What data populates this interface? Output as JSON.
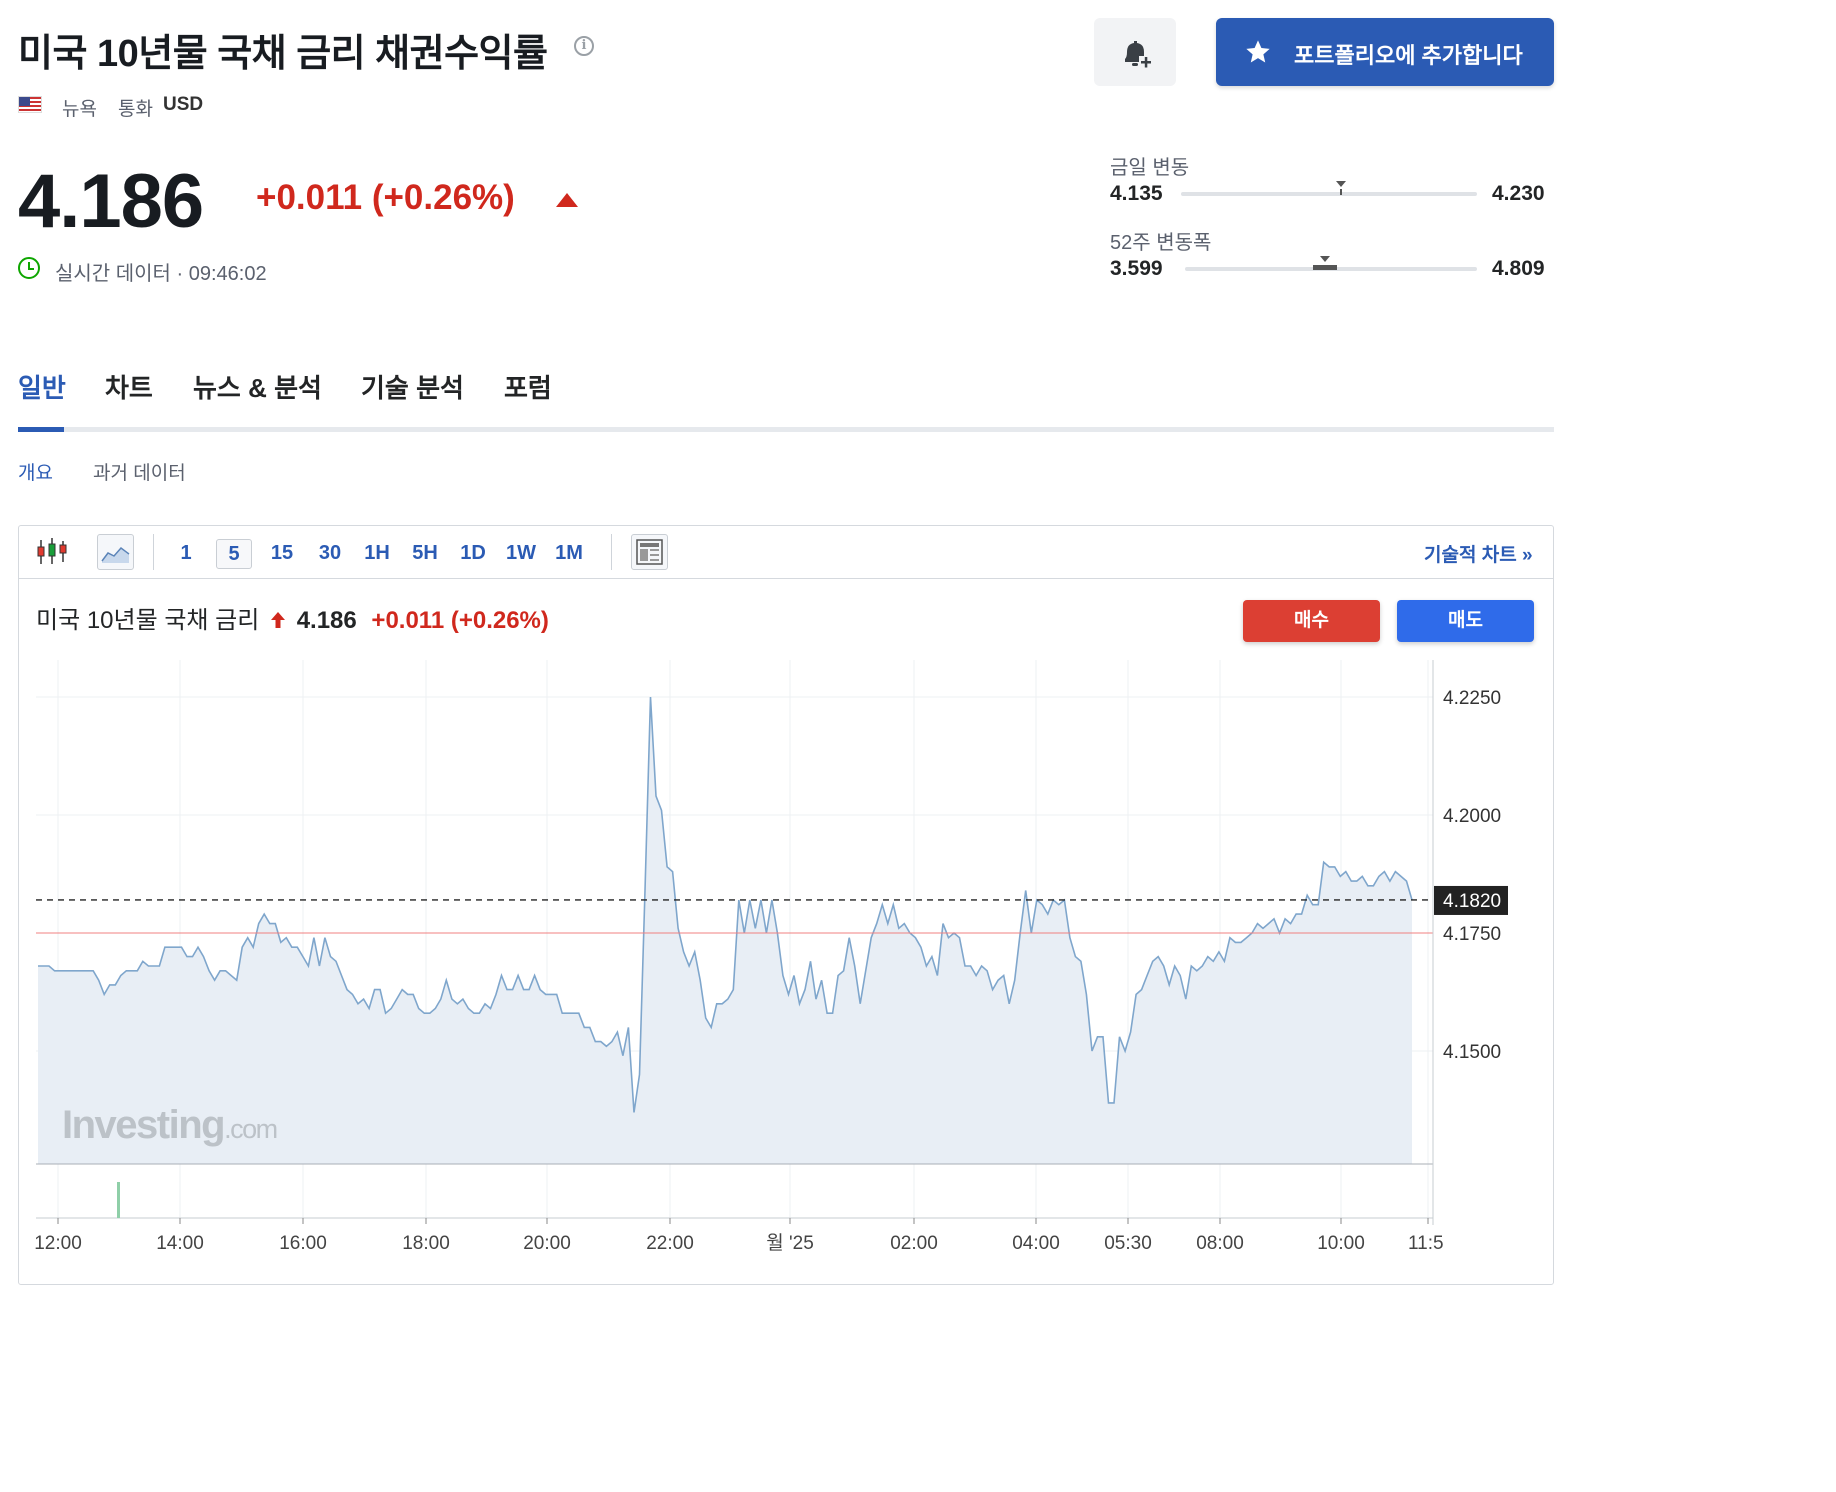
{
  "header": {
    "title": "미국 10년물 국채 금리 채권수익률",
    "location": "뉴욕",
    "currency_label": "통화",
    "currency": "USD",
    "portfolio_button": "포트폴리오에 추가합니다"
  },
  "quote": {
    "price": "4.186",
    "change": "+0.011 (+0.26%)",
    "realtime_label": "실시간 데이터 · 09:46:02",
    "day_range": {
      "label": "금일 변동",
      "low": "4.135",
      "high": "4.230",
      "position": 0.54
    },
    "week52_range": {
      "label": "52주 변동폭",
      "low": "3.599",
      "high": "4.809",
      "position": 0.48
    }
  },
  "tabs": [
    {
      "label": "일반",
      "active": true
    },
    {
      "label": "차트",
      "active": false
    },
    {
      "label": "뉴스 & 분석",
      "active": false
    },
    {
      "label": "기술 분석",
      "active": false
    },
    {
      "label": "포럼",
      "active": false
    }
  ],
  "subtabs": [
    {
      "label": "개요",
      "active": true
    },
    {
      "label": "과거 데이터",
      "active": false
    }
  ],
  "toolbar": {
    "timeframes": [
      "1",
      "5",
      "15",
      "30",
      "1H",
      "5H",
      "1D",
      "1W",
      "1M"
    ],
    "selected": "5",
    "tech_chart_link": "기술적 차트 »"
  },
  "chart_header": {
    "name": "미국 10년물 국채 금리",
    "price": "4.186",
    "change": "+0.011 (+0.26%)",
    "buy": "매수",
    "sell": "매도"
  },
  "watermark": {
    "brand": "Investing",
    "suffix": ".com"
  },
  "colors": {
    "line": "#7fa6cc",
    "area": "#e8eef5",
    "up": "#d0281d",
    "accent": "#2b5bb4",
    "buy": "#dc3f33",
    "sell": "#2f6bea"
  },
  "chart_data": {
    "type": "area",
    "y_ticks": [
      "4.2250",
      "4.2000",
      "4.1750",
      "4.1500"
    ],
    "ylim": [
      4.127,
      4.235
    ],
    "x_ticks": [
      "12:00",
      "14:00",
      "16:00",
      "18:00",
      "20:00",
      "22:00",
      "월 '25",
      "02:00",
      "04:00",
      "05:30",
      "08:00",
      "10:00",
      "11:5"
    ],
    "current_value": 4.182,
    "current_label": "4.1820",
    "previous_close": 4.175,
    "values": [
      4.168,
      4.168,
      4.168,
      4.167,
      4.167,
      4.167,
      4.167,
      4.167,
      4.167,
      4.167,
      4.167,
      4.165,
      4.162,
      4.164,
      4.164,
      4.166,
      4.167,
      4.167,
      4.167,
      4.169,
      4.168,
      4.168,
      4.168,
      4.172,
      4.172,
      4.172,
      4.172,
      4.17,
      4.17,
      4.172,
      4.17,
      4.167,
      4.165,
      4.167,
      4.167,
      4.166,
      4.165,
      4.172,
      4.174,
      4.172,
      4.177,
      4.179,
      4.177,
      4.177,
      4.173,
      4.174,
      4.172,
      4.172,
      4.17,
      4.168,
      4.174,
      4.168,
      4.174,
      4.17,
      4.169,
      4.166,
      4.163,
      4.162,
      4.16,
      4.161,
      4.159,
      4.163,
      4.163,
      4.158,
      4.159,
      4.161,
      4.163,
      4.162,
      4.162,
      4.159,
      4.158,
      4.158,
      4.159,
      4.161,
      4.165,
      4.161,
      4.16,
      4.161,
      4.159,
      4.158,
      4.158,
      4.16,
      4.159,
      4.162,
      4.166,
      4.163,
      4.163,
      4.166,
      4.163,
      4.163,
      4.166,
      4.163,
      4.162,
      4.162,
      4.162,
      4.158,
      4.158,
      4.158,
      4.158,
      4.155,
      4.155,
      4.152,
      4.152,
      4.151,
      4.152,
      4.154,
      4.149,
      4.155,
      4.137,
      4.145,
      4.184,
      4.225,
      4.204,
      4.201,
      4.189,
      4.188,
      4.176,
      4.171,
      4.168,
      4.171,
      4.165,
      4.157,
      4.155,
      4.16,
      4.16,
      4.161,
      4.163,
      4.182,
      4.175,
      4.182,
      4.176,
      4.182,
      4.175,
      4.182,
      4.175,
      4.166,
      4.162,
      4.166,
      4.16,
      4.163,
      4.169,
      4.161,
      4.165,
      4.158,
      4.158,
      4.166,
      4.167,
      4.174,
      4.168,
      4.16,
      4.167,
      4.174,
      4.177,
      4.181,
      4.177,
      4.181,
      4.176,
      4.177,
      4.175,
      4.174,
      4.172,
      4.168,
      4.17,
      4.166,
      4.177,
      4.174,
      4.175,
      4.174,
      4.168,
      4.168,
      4.166,
      4.168,
      4.167,
      4.163,
      4.165,
      4.166,
      4.16,
      4.165,
      4.175,
      4.184,
      4.175,
      4.182,
      4.181,
      4.179,
      4.182,
      4.181,
      4.182,
      4.174,
      4.17,
      4.169,
      4.162,
      4.15,
      4.153,
      4.153,
      4.139,
      4.139,
      4.153,
      4.15,
      4.154,
      4.162,
      4.163,
      4.166,
      4.169,
      4.17,
      4.168,
      4.164,
      4.168,
      4.166,
      4.161,
      4.168,
      4.167,
      4.168,
      4.17,
      4.169,
      4.171,
      4.169,
      4.174,
      4.173,
      4.173,
      4.174,
      4.175,
      4.177,
      4.176,
      4.177,
      4.178,
      4.175,
      4.178,
      4.177,
      4.179,
      4.179,
      4.183,
      4.181,
      4.181,
      4.19,
      4.189,
      4.189,
      4.187,
      4.188,
      4.186,
      4.186,
      4.187,
      4.185,
      4.185,
      4.187,
      4.188,
      4.186,
      4.188,
      4.187,
      4.186,
      4.182
    ]
  }
}
